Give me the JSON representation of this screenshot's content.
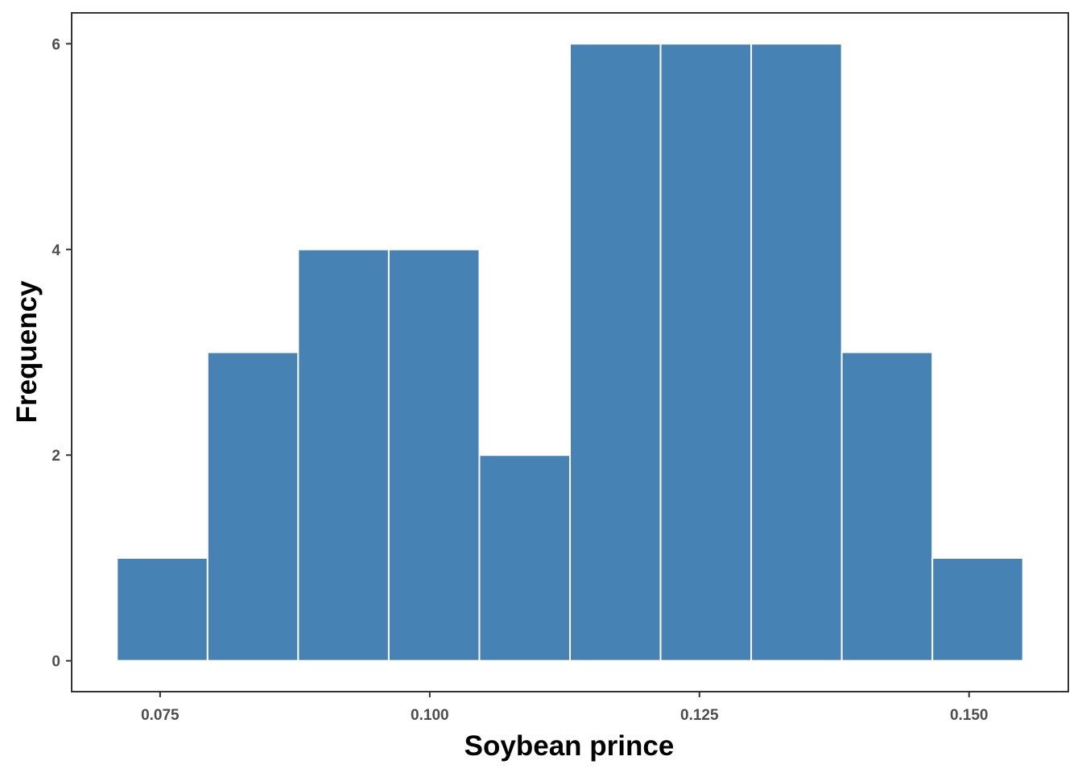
{
  "chart_data": {
    "type": "bar",
    "subtype": "histogram",
    "title": "",
    "xlabel": "Soybean prince",
    "ylabel": "Frequency",
    "bins": [
      {
        "x0": 0.071,
        "x1": 0.0794,
        "count": 1
      },
      {
        "x0": 0.0794,
        "x1": 0.0878,
        "count": 3
      },
      {
        "x0": 0.0878,
        "x1": 0.0962,
        "count": 4
      },
      {
        "x0": 0.0962,
        "x1": 0.1046,
        "count": 4
      },
      {
        "x0": 0.1046,
        "x1": 0.113,
        "count": 2
      },
      {
        "x0": 0.113,
        "x1": 0.1214,
        "count": 6
      },
      {
        "x0": 0.1214,
        "x1": 0.1298,
        "count": 6
      },
      {
        "x0": 0.1298,
        "x1": 0.1382,
        "count": 6
      },
      {
        "x0": 0.1382,
        "x1": 0.1466,
        "count": 3
      },
      {
        "x0": 0.1466,
        "x1": 0.155,
        "count": 1
      }
    ],
    "xlim": [
      0.0668,
      0.1592
    ],
    "ylim": [
      -0.3,
      6.3
    ],
    "x_ticks": [
      0.075,
      0.1,
      0.125,
      0.15
    ],
    "x_tick_labels": [
      "0.075",
      "0.100",
      "0.125",
      "0.150"
    ],
    "y_ticks": [
      0,
      2,
      4,
      6
    ],
    "y_tick_labels": [
      "0",
      "2",
      "4",
      "6"
    ],
    "grid": false,
    "legend": "none",
    "colors": {
      "bar_fill": "#4682b4",
      "bar_outline": "#ffffff",
      "panel_border": "#333333",
      "tick_label": "#4d4d4d",
      "axis_title": "#000000"
    }
  }
}
